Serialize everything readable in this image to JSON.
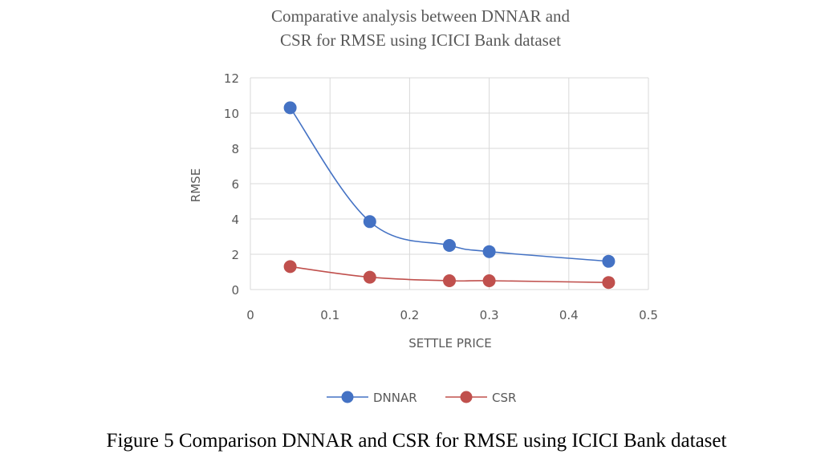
{
  "chart_data": {
    "type": "line",
    "title": [
      "Comparative  analysis between  DNNAR and",
      "CSR for RMSE using ICICI  Bank dataset"
    ],
    "xlabel": "SETTLE PRICE",
    "ylabel": "RMSE",
    "xlim": [
      0,
      0.5
    ],
    "ylim": [
      0,
      12
    ],
    "xticks": [
      "0",
      "0.1",
      "0.2",
      "0.3",
      "0.4",
      "0.5"
    ],
    "yticks": [
      "0",
      "2",
      "4",
      "6",
      "8",
      "10",
      "12"
    ],
    "grid": true,
    "smooth": true,
    "legend_position": "bottom",
    "series": [
      {
        "name": "DNNAR",
        "color": "#4472C4",
        "points": [
          [
            0.05,
            10.3
          ],
          [
            0.15,
            3.85
          ],
          [
            0.25,
            2.5
          ],
          [
            0.3,
            2.15
          ],
          [
            0.45,
            1.6
          ]
        ]
      },
      {
        "name": "CSR",
        "color": "#C0504D",
        "points": [
          [
            0.05,
            1.3
          ],
          [
            0.15,
            0.7
          ],
          [
            0.25,
            0.5
          ],
          [
            0.3,
            0.5
          ],
          [
            0.45,
            0.4
          ]
        ]
      }
    ]
  },
  "caption": "Figure 5 Comparison DNNAR and CSR for RMSE using ICICI Bank dataset"
}
